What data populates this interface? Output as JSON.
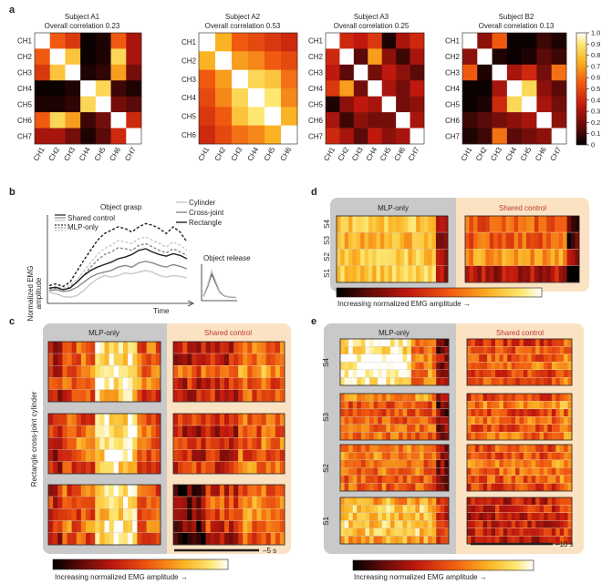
{
  "panel_labels": {
    "a": "a",
    "b": "b",
    "c": "c",
    "d": "d",
    "e": "e"
  },
  "panel_a": {
    "matrices": [
      {
        "title": "Subject A1",
        "subtitle": "Overall correlation 0.23",
        "labels": [
          "CH1",
          "CH2",
          "CH3",
          "CH4",
          "CH5",
          "CH6",
          "CH7"
        ],
        "values": [
          [
            1.0,
            0.55,
            0.45,
            0.02,
            0.05,
            0.55,
            0.3
          ],
          [
            0.55,
            1.0,
            0.8,
            0.02,
            0.05,
            0.85,
            0.3
          ],
          [
            0.45,
            0.8,
            1.0,
            0.05,
            0.08,
            0.7,
            0.2
          ],
          [
            0.02,
            0.02,
            0.05,
            1.0,
            0.85,
            0.1,
            0.05
          ],
          [
            0.05,
            0.05,
            0.08,
            0.85,
            1.0,
            0.2,
            0.15
          ],
          [
            0.55,
            0.85,
            0.7,
            0.1,
            0.2,
            1.0,
            0.4
          ],
          [
            0.3,
            0.3,
            0.2,
            0.05,
            0.15,
            0.4,
            1.0
          ]
        ]
      },
      {
        "title": "Subject A2",
        "subtitle": "Overall correlation 0.53",
        "labels": [
          "CH1",
          "CH2",
          "CH3",
          "CH4",
          "CH5",
          "CH6"
        ],
        "values": [
          [
            1.0,
            0.75,
            0.55,
            0.5,
            0.45,
            0.4
          ],
          [
            0.75,
            1.0,
            0.7,
            0.65,
            0.55,
            0.5
          ],
          [
            0.55,
            0.7,
            1.0,
            0.85,
            0.8,
            0.6
          ],
          [
            0.5,
            0.65,
            0.85,
            1.0,
            0.9,
            0.65
          ],
          [
            0.45,
            0.55,
            0.8,
            0.9,
            1.0,
            0.75
          ],
          [
            0.4,
            0.5,
            0.6,
            0.65,
            0.75,
            1.0
          ]
        ]
      },
      {
        "title": "Subject A3",
        "subtitle": "Overall correlation 0.25",
        "labels": [
          "CH1",
          "CH2",
          "CH3",
          "CH4",
          "CH5",
          "CH6",
          "CH7"
        ],
        "values": [
          [
            1.0,
            0.4,
            0.35,
            0.45,
            0.05,
            0.3,
            0.4
          ],
          [
            0.4,
            1.0,
            0.15,
            0.7,
            0.25,
            0.1,
            0.3
          ],
          [
            0.35,
            0.15,
            1.0,
            0.2,
            0.35,
            0.25,
            0.15
          ],
          [
            0.45,
            0.7,
            0.2,
            1.0,
            0.3,
            0.2,
            0.35
          ],
          [
            0.05,
            0.25,
            0.35,
            0.3,
            1.0,
            0.2,
            0.25
          ],
          [
            0.3,
            0.1,
            0.25,
            0.2,
            0.2,
            1.0,
            0.3
          ],
          [
            0.4,
            0.3,
            0.15,
            0.35,
            0.25,
            0.3,
            1.0
          ]
        ]
      },
      {
        "title": "Subject B2",
        "subtitle": "Overall correlation 0.13",
        "labels": [
          "CH1",
          "CH2",
          "CH3",
          "CH4",
          "CH5",
          "CH6",
          "CH7"
        ],
        "values": [
          [
            1.0,
            0.25,
            0.55,
            0.02,
            0.02,
            0.1,
            0.05
          ],
          [
            0.25,
            1.0,
            0.05,
            0.02,
            0.05,
            0.15,
            0.1
          ],
          [
            0.55,
            0.05,
            1.0,
            0.3,
            0.4,
            0.2,
            0.6
          ],
          [
            0.02,
            0.02,
            0.3,
            1.0,
            0.85,
            0.25,
            0.15
          ],
          [
            0.02,
            0.05,
            0.4,
            0.85,
            1.0,
            0.3,
            0.2
          ],
          [
            0.1,
            0.15,
            0.2,
            0.25,
            0.3,
            1.0,
            0.25
          ],
          [
            0.05,
            0.1,
            0.6,
            0.15,
            0.2,
            0.25,
            1.0
          ]
        ]
      }
    ],
    "colorbar_ticks": [
      "0",
      "0.1",
      "0.2",
      "0.3",
      "0.4",
      "0.5",
      "0.6",
      "0.7",
      "0.8",
      "0.9",
      "1.0"
    ]
  },
  "panel_b": {
    "ylabel_line1": "Normalized EMG",
    "ylabel_line2": "amplitude",
    "xlabel": "Time",
    "grasp_title": "Object grasp",
    "release_title": "Object release",
    "legend_control": [
      "Shared control",
      "MLP-only"
    ],
    "legend_objects": [
      "Cylinder",
      "Cross-joint",
      "Rectangle"
    ],
    "chart_data": {
      "type": "line",
      "title": "Object grasp",
      "xlabel": "Time",
      "ylabel": "Normalized EMG amplitude",
      "x": [
        0,
        1,
        2,
        3,
        4,
        5,
        6,
        7,
        8,
        9,
        10,
        11,
        12,
        13,
        14,
        15,
        16,
        17,
        18,
        19,
        20
      ],
      "ylim": [
        0,
        1
      ],
      "series": [
        {
          "name": "Rectangle MLP-only",
          "color": "#231f20",
          "dash": true,
          "values": [
            0.18,
            0.2,
            0.17,
            0.22,
            0.35,
            0.48,
            0.6,
            0.72,
            0.8,
            0.84,
            0.88,
            0.86,
            0.82,
            0.88,
            0.92,
            0.9,
            0.86,
            0.8,
            0.88,
            0.82,
            0.7
          ]
        },
        {
          "name": "Cylinder MLP-only",
          "color": "#c8c8c8",
          "dash": true,
          "values": [
            0.15,
            0.17,
            0.15,
            0.18,
            0.25,
            0.35,
            0.45,
            0.55,
            0.62,
            0.66,
            0.72,
            0.7,
            0.68,
            0.74,
            0.76,
            0.72,
            0.68,
            0.64,
            0.7,
            0.66,
            0.6
          ]
        },
        {
          "name": "Cross-joint MLP-only",
          "color": "#8a8a8a",
          "dash": true,
          "values": [
            0.14,
            0.15,
            0.13,
            0.16,
            0.22,
            0.3,
            0.4,
            0.48,
            0.55,
            0.58,
            0.63,
            0.62,
            0.6,
            0.66,
            0.68,
            0.64,
            0.6,
            0.57,
            0.62,
            0.58,
            0.54
          ]
        },
        {
          "name": "Rectangle Shared control",
          "color": "#231f20",
          "dash": false,
          "values": [
            0.15,
            0.16,
            0.13,
            0.15,
            0.22,
            0.3,
            0.36,
            0.4,
            0.43,
            0.46,
            0.5,
            0.52,
            0.55,
            0.6,
            0.62,
            0.58,
            0.55,
            0.53,
            0.56,
            0.54,
            0.5
          ]
        },
        {
          "name": "Cross-joint Shared control",
          "color": "#8a8a8a",
          "dash": false,
          "values": [
            0.12,
            0.13,
            0.11,
            0.12,
            0.16,
            0.22,
            0.28,
            0.32,
            0.34,
            0.36,
            0.4,
            0.42,
            0.4,
            0.45,
            0.47,
            0.45,
            0.42,
            0.4,
            0.43,
            0.41,
            0.38
          ]
        },
        {
          "name": "Cylinder Shared control",
          "color": "#c8c8c8",
          "dash": false,
          "values": [
            0.1,
            0.08,
            0.05,
            0.04,
            0.06,
            0.12,
            0.2,
            0.26,
            0.3,
            0.28,
            0.3,
            0.33,
            0.32,
            0.34,
            0.36,
            0.34,
            0.3,
            0.28,
            0.3,
            0.29,
            0.27
          ]
        }
      ]
    }
  },
  "panel_c": {
    "mlp_label": "MLP-only",
    "shared_label": "Shared control",
    "row_label": "Rectangle cross-joint cylinder",
    "scale_label": "–5 s",
    "colorbar_label": "Increasing normalized EMG amplitude →"
  },
  "panel_d": {
    "mlp_label": "MLP-only",
    "shared_label": "Shared control",
    "row_labels": [
      "S4",
      "S3",
      "S2",
      "S1"
    ],
    "colorbar_label": "Increasing normalized EMG amplitude →"
  },
  "panel_e": {
    "mlp_label": "MLP-only",
    "shared_label": "Shared control",
    "row_labels": [
      "S4",
      "S3",
      "S2",
      "S1"
    ],
    "scale_label": "–10 s",
    "colorbar_label": "Increasing normalized EMG amplitude →"
  },
  "colors": {
    "mlp_bg": "#c9c9c9",
    "shared_bg": "#fbe2c2",
    "ink": "#231f20",
    "shared_label": "#c0392b"
  }
}
